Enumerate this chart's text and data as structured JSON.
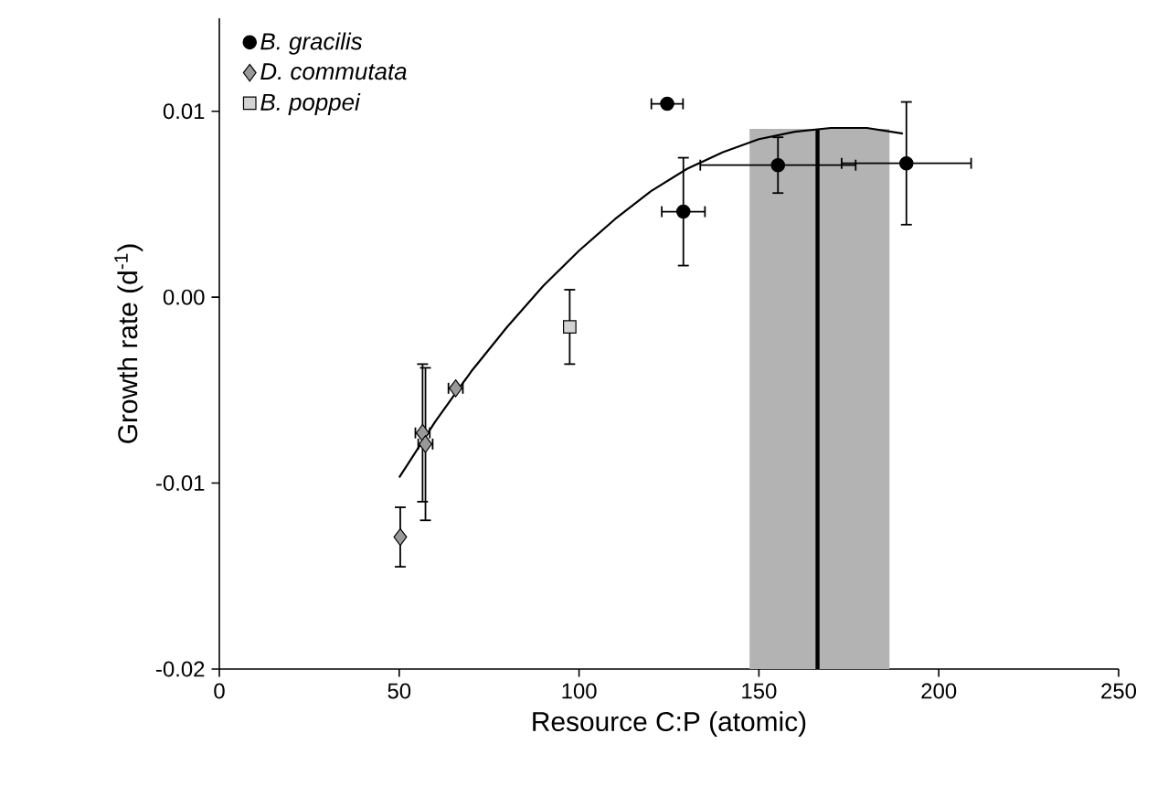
{
  "chart_data": {
    "type": "scatter",
    "xlabel": "Resource C:P (atomic)",
    "ylabel": "Growth rate (d$^{-1}$)",
    "xlim": [
      0,
      250
    ],
    "xticks": [
      0,
      50,
      100,
      150,
      200,
      250
    ],
    "ylim": [
      -0.02,
      0.015
    ],
    "yticks": [
      -0.02,
      -0.01,
      {
        "value": 0,
        "label": "0.00"
      },
      0.01
    ],
    "legend": "top left",
    "grid": false,
    "series": [
      {
        "name": "B. gracilis",
        "color": "#000000",
        "marker": "circle",
        "x": [
          124.5,
          129,
          155.3,
          191
        ],
        "values": [
          0.0104,
          0.0046,
          0.0071,
          0.0072
        ],
        "errors": [
          null,
          0.0029,
          0.0015,
          0.0033
        ],
        "xerrors": [
          4.4,
          6,
          21.6,
          18
        ]
      },
      {
        "name": "D. commutata",
        "color": "#999999",
        "marker": "diamond",
        "x": [
          50.3,
          56.5,
          57.3,
          65.7
        ],
        "values": [
          -0.0129,
          -0.0073,
          -0.0079,
          -0.0049
        ],
        "errors": [
          0.0016,
          0.0037,
          0.0041,
          null
        ],
        "xerrors": [
          null,
          2,
          2,
          2
        ]
      },
      {
        "name": "B. poppei",
        "color": "#d3d3d3",
        "marker": "square",
        "x": [
          97.4
        ],
        "values": [
          -0.0016
        ],
        "errors": [
          0.002
        ],
        "xerrors": [
          null
        ]
      },
      {
        "type": "line",
        "color": "#000000",
        "marker": "none",
        "x": [
          50,
          60,
          70,
          80,
          90,
          100,
          110,
          120,
          130,
          140,
          150,
          160,
          170,
          180,
          190
        ],
        "values": [
          -0.0097,
          -0.0067,
          -0.004,
          -0.0016,
          0.0006,
          0.0025,
          0.0042,
          0.0057,
          0.0069,
          0.0078,
          0.0085,
          0.0089,
          0.0091,
          0.0091,
          0.0088
        ]
      }
    ],
    "bands": [
      {
        "axis": "x",
        "from": 147.4,
        "to": 186.3,
        "color": "#b3b3b3"
      }
    ],
    "ref_lines": [
      {
        "axis": "x",
        "value": 166.3,
        "color": "#000000"
      }
    ]
  }
}
